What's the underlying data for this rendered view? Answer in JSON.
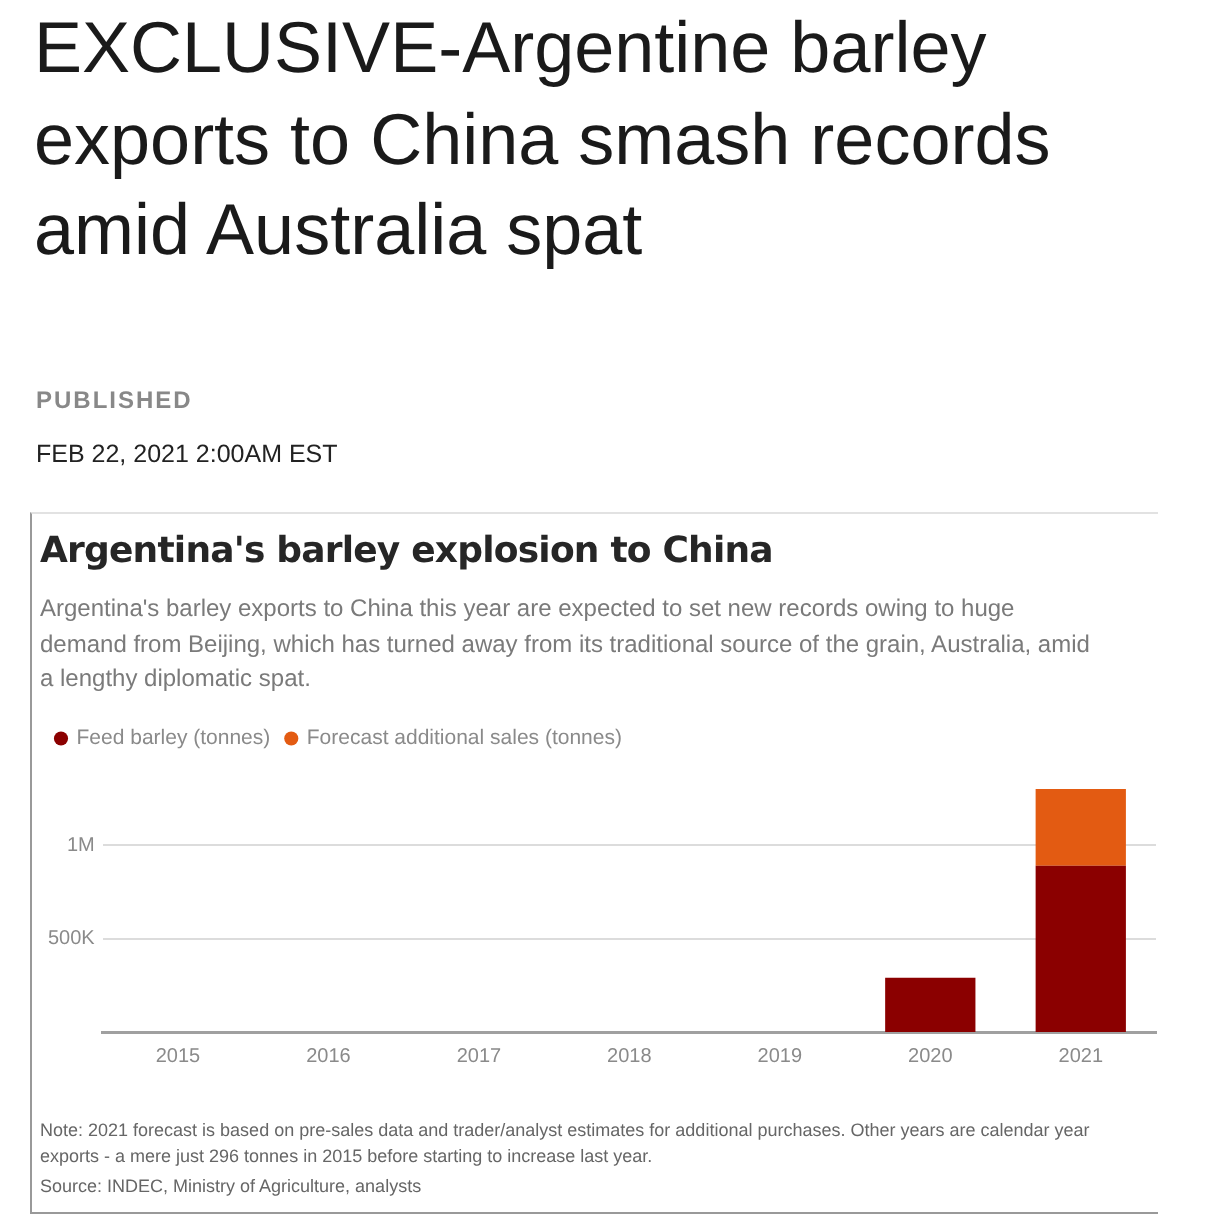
{
  "chart_data": {
    "type": "bar",
    "title": "Argentina's barley explosion to China",
    "subtitle": "Argentina's barley exports to China this year are expected to set new records owing to huge demand from Beijing, which has turned away from its traditional source of the grain, Australia, amid a lengthy diplomatic spat.",
    "annotations": [
      "EXCLUSIVE-Argentine barley exports to China smash records amid Australia spat",
      "PUBLISHED",
      "FEB 22, 2021 2:00AM EST",
      "Note: 2021 forecast is based on pre-sales data and trader/analyst estimates for additional purchases. Other years are calendar year exports - a mere just 296 tonnes in 2015 before starting to increase last year.",
      "Source: INDEC, Ministry of Agriculture, analysts"
    ],
    "categories": [
      "2015",
      "2016",
      "2017",
      "2018",
      "2019",
      "2020",
      "2021"
    ],
    "series": [
      {
        "name": "Feed barley (tonnes)",
        "color": "#8b0000",
        "values": [
          0,
          0,
          0,
          0,
          0,
          290000,
          890000
        ]
      },
      {
        "name": "Forecast additional sales (tonnes)",
        "color": "#e35b12",
        "values": [
          null,
          null,
          null,
          null,
          null,
          null,
          410000
        ]
      }
    ],
    "stacked": true,
    "ylim": [
      0,
      1300000
    ],
    "yticks": [
      {
        "value": 500000,
        "label": "500K"
      },
      {
        "value": 1000000,
        "label": "1M"
      }
    ],
    "grid": "y",
    "legend": "top left"
  }
}
